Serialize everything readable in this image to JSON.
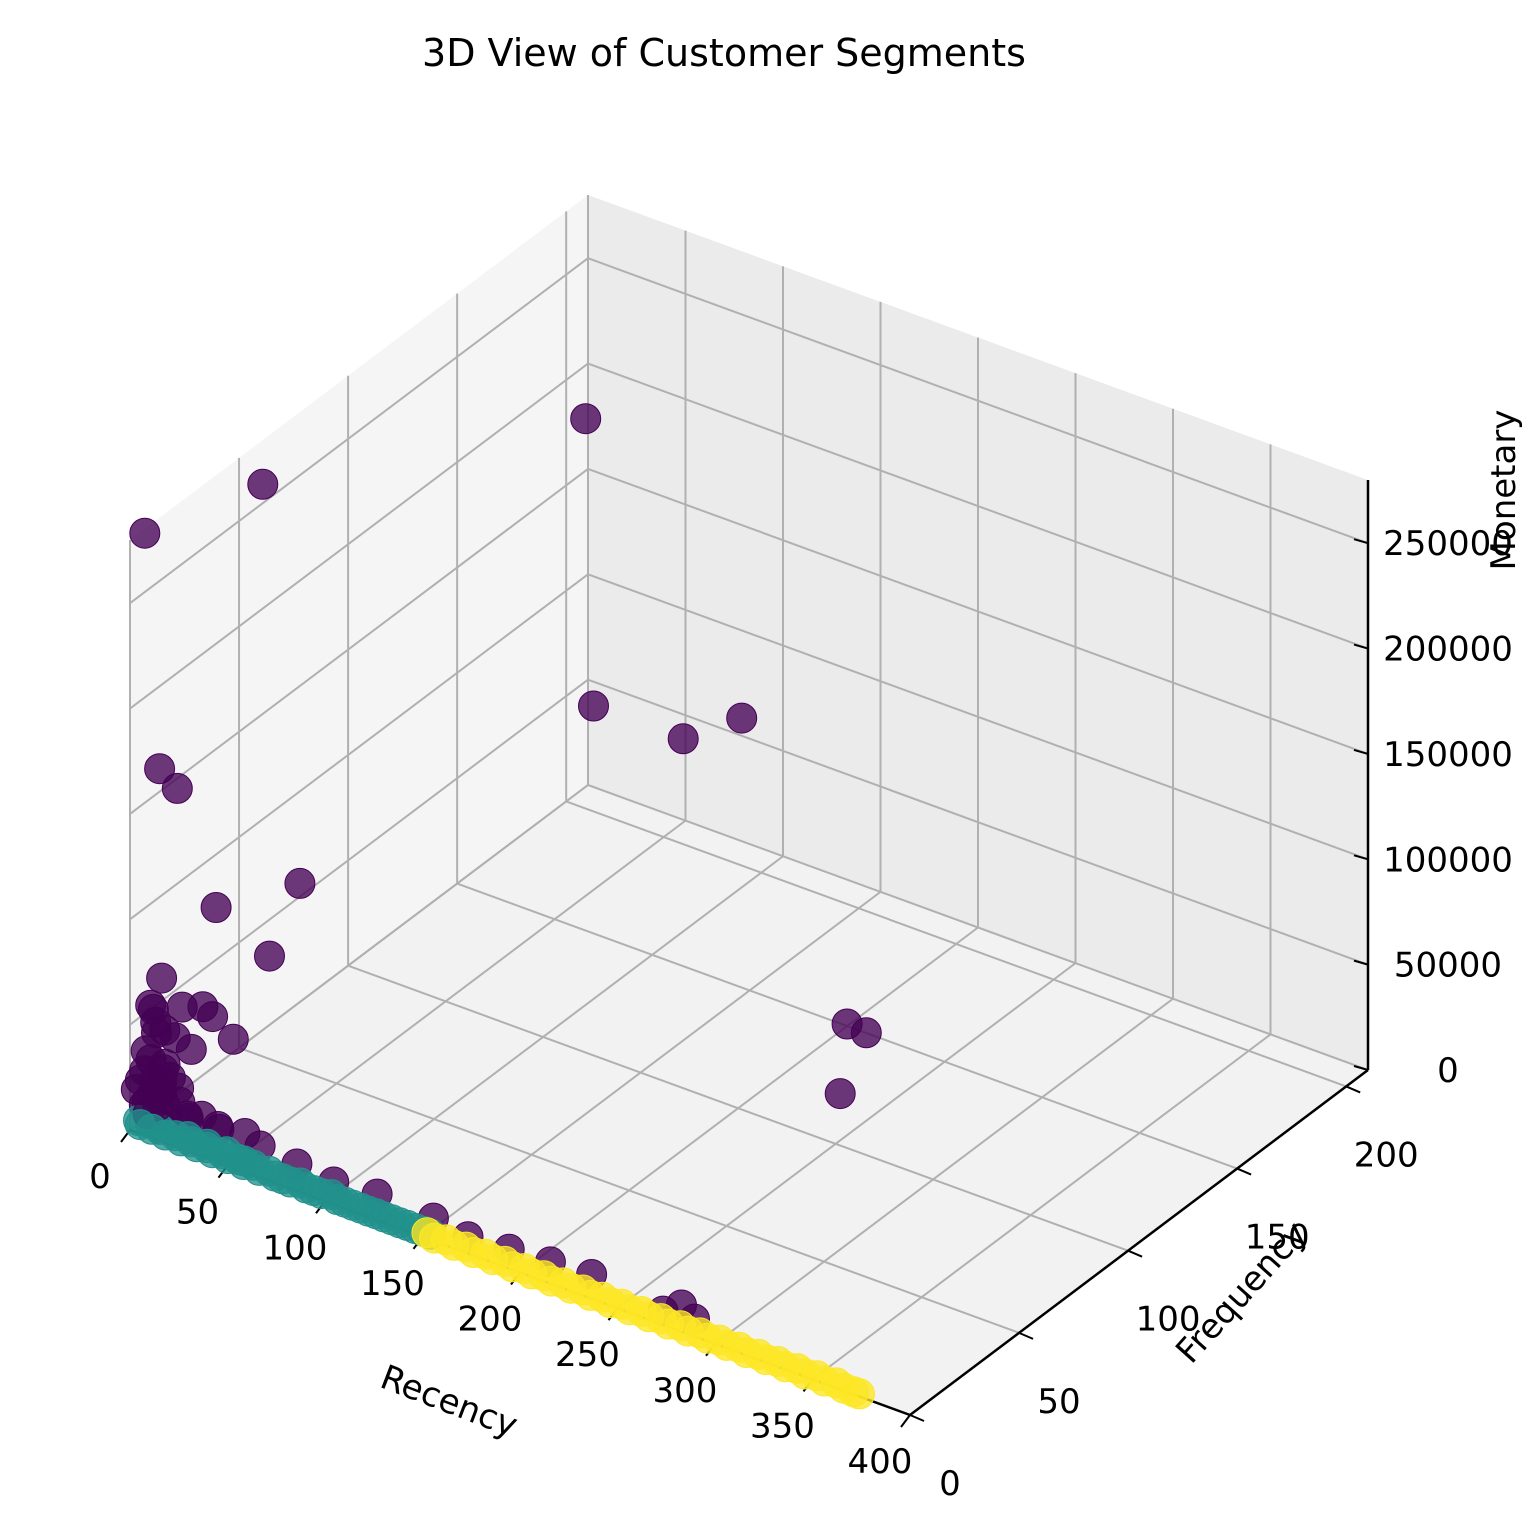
{
  "chart_data": {
    "type": "scatter",
    "projection": "3d",
    "title": "3D View of Customer Segments",
    "xlabel": "Recency",
    "ylabel": "Frequency",
    "zlabel": "Monetary",
    "xlim": [
      0,
      400
    ],
    "ylim": [
      0,
      210
    ],
    "zlim": [
      0,
      280000
    ],
    "xticks": [
      0,
      50,
      100,
      150,
      200,
      250,
      300,
      350,
      400
    ],
    "yticks": [
      0,
      50,
      100,
      150,
      200
    ],
    "zticks": [
      0,
      50000,
      100000,
      150000,
      200000,
      250000
    ],
    "grid": true,
    "legend": "none",
    "colors": {
      "cluster_0": "#440154",
      "cluster_1": "#21918c",
      "cluster_2": "#fde725",
      "pane": "#f2f2f2",
      "grid": "#b0b0b0"
    },
    "series": [
      {
        "cluster": 0,
        "color": "#440154",
        "points": [
          [
            2,
            5,
            280000
          ],
          [
            1,
            60,
            260000
          ],
          [
            10,
            200,
            185000
          ],
          [
            372,
            5,
            168000
          ],
          [
            4,
            10,
            165000
          ],
          [
            22,
            2,
            168000
          ],
          [
            20,
            60,
            77000
          ],
          [
            5,
            35,
            80000
          ],
          [
            38,
            30,
            72000
          ],
          [
            90,
            200,
            70000
          ],
          [
            5,
            10,
            66000
          ],
          [
            14,
            200,
            50000
          ],
          [
            60,
            200,
            50000
          ],
          [
            5,
            5,
            57000
          ],
          [
            3,
            8,
            52000
          ],
          [
            10,
            15,
            50000
          ],
          [
            15,
            20,
            48000
          ],
          [
            20,
            20,
            45000
          ],
          [
            8,
            5,
            45000
          ],
          [
            2,
            10,
            44000
          ],
          [
            12,
            10,
            40000
          ],
          [
            6,
            2,
            38000
          ],
          [
            1,
            15,
            36000
          ],
          [
            18,
            12,
            35000
          ],
          [
            25,
            25,
            32000
          ],
          [
            4,
            6,
            30000
          ],
          [
            9,
            8,
            28000
          ],
          [
            3,
            4,
            26000
          ],
          [
            14,
            6,
            25000
          ],
          [
            7,
            9,
            24000
          ],
          [
            2,
            3,
            22000
          ],
          [
            11,
            4,
            21000
          ],
          [
            5,
            7,
            20000
          ],
          [
            16,
            8,
            19000
          ],
          [
            1,
            2,
            18000
          ],
          [
            8,
            3,
            17000
          ],
          [
            20,
            5,
            16000
          ],
          [
            3,
            12,
            15000
          ],
          [
            12,
            2,
            14000
          ],
          [
            6,
            9,
            13000
          ],
          [
            25,
            4,
            12000
          ],
          [
            30,
            6,
            12000
          ],
          [
            4,
            3,
            11000
          ],
          [
            10,
            7,
            10000
          ],
          [
            40,
            5,
            10000
          ],
          [
            2,
            6,
            9500
          ],
          [
            15,
            3,
            9000
          ],
          [
            50,
            8,
            9000
          ],
          [
            7,
            2,
            8500
          ],
          [
            18,
            4,
            8000
          ],
          [
            60,
            6,
            8000
          ],
          [
            22,
            7,
            7500
          ],
          [
            80,
            5,
            7000
          ],
          [
            9,
            4,
            6800
          ],
          [
            35,
            9,
            6500
          ],
          [
            100,
            4,
            6000
          ],
          [
            120,
            6,
            5500
          ],
          [
            150,
            5,
            5000
          ],
          [
            170,
            3,
            4500
          ],
          [
            190,
            4,
            4500
          ],
          [
            210,
            5,
            4500
          ],
          [
            230,
            6,
            4500
          ],
          [
            275,
            7,
            4500
          ],
          [
            200,
            150,
            1000
          ],
          [
            230,
            120,
            1500
          ],
          [
            285,
            4,
            3500
          ],
          [
            270,
            3,
            3000
          ]
        ]
      },
      {
        "cluster": 1,
        "color": "#21918c",
        "points": [
          [
            1,
            3,
            2500
          ],
          [
            3,
            2,
            2000
          ],
          [
            6,
            4,
            2200
          ],
          [
            9,
            2,
            1800
          ],
          [
            12,
            3,
            2000
          ],
          [
            16,
            2,
            1500
          ],
          [
            20,
            3,
            1700
          ],
          [
            24,
            2,
            1400
          ],
          [
            28,
            3,
            1600
          ],
          [
            32,
            2,
            1300
          ],
          [
            36,
            3,
            1500
          ],
          [
            40,
            2,
            1200
          ],
          [
            44,
            3,
            1400
          ],
          [
            48,
            2,
            1100
          ],
          [
            52,
            3,
            1300
          ],
          [
            56,
            2,
            1000
          ],
          [
            60,
            3,
            1200
          ],
          [
            64,
            2,
            900
          ],
          [
            68,
            3,
            1100
          ],
          [
            72,
            2,
            900
          ],
          [
            76,
            2,
            1000
          ],
          [
            80,
            2,
            800
          ],
          [
            84,
            3,
            900
          ],
          [
            88,
            2,
            700
          ],
          [
            92,
            2,
            800
          ],
          [
            96,
            2,
            700
          ],
          [
            100,
            3,
            800
          ],
          [
            104,
            2,
            600
          ],
          [
            108,
            2,
            700
          ],
          [
            112,
            2,
            600
          ],
          [
            116,
            2,
            600
          ],
          [
            120,
            2,
            500
          ],
          [
            124,
            2,
            600
          ],
          [
            128,
            2,
            500
          ],
          [
            132,
            2,
            500
          ],
          [
            136,
            2,
            400
          ],
          [
            140,
            2,
            500
          ],
          [
            144,
            2,
            400
          ],
          [
            148,
            2,
            400
          ],
          [
            152,
            2,
            400
          ],
          [
            2,
            8,
            3000
          ],
          [
            5,
            6,
            2800
          ],
          [
            10,
            5,
            2600
          ],
          [
            15,
            5,
            2400
          ],
          [
            25,
            4,
            2200
          ],
          [
            35,
            4,
            2000
          ],
          [
            45,
            4,
            1800
          ],
          [
            55,
            3,
            1600
          ]
        ]
      },
      {
        "cluster": 2,
        "color": "#fde725",
        "points": [
          [
            150,
            2,
            400
          ],
          [
            155,
            1,
            350
          ],
          [
            160,
            2,
            380
          ],
          [
            165,
            1,
            300
          ],
          [
            170,
            2,
            360
          ],
          [
            175,
            1,
            280
          ],
          [
            180,
            2,
            340
          ],
          [
            185,
            1,
            260
          ],
          [
            190,
            2,
            320
          ],
          [
            195,
            1,
            240
          ],
          [
            200,
            2,
            300
          ],
          [
            205,
            1,
            230
          ],
          [
            210,
            2,
            280
          ],
          [
            215,
            1,
            220
          ],
          [
            220,
            2,
            270
          ],
          [
            225,
            1,
            210
          ],
          [
            230,
            2,
            260
          ],
          [
            235,
            1,
            200
          ],
          [
            240,
            2,
            250
          ],
          [
            245,
            1,
            190
          ],
          [
            250,
            2,
            240
          ],
          [
            255,
            1,
            180
          ],
          [
            260,
            2,
            230
          ],
          [
            265,
            1,
            170
          ],
          [
            270,
            2,
            220
          ],
          [
            275,
            1,
            160
          ],
          [
            280,
            2,
            210
          ],
          [
            285,
            1,
            150
          ],
          [
            290,
            2,
            200
          ],
          [
            295,
            1,
            150
          ],
          [
            300,
            2,
            190
          ],
          [
            305,
            1,
            140
          ],
          [
            310,
            2,
            180
          ],
          [
            315,
            1,
            140
          ],
          [
            320,
            2,
            170
          ],
          [
            325,
            1,
            130
          ],
          [
            330,
            2,
            160
          ],
          [
            335,
            1,
            130
          ],
          [
            340,
            2,
            150
          ],
          [
            345,
            1,
            120
          ],
          [
            350,
            2,
            140
          ],
          [
            355,
            1,
            120
          ],
          [
            360,
            2,
            130
          ],
          [
            365,
            1,
            110
          ],
          [
            370,
            1,
            100
          ],
          [
            373,
            1,
            100
          ]
        ]
      }
    ]
  }
}
